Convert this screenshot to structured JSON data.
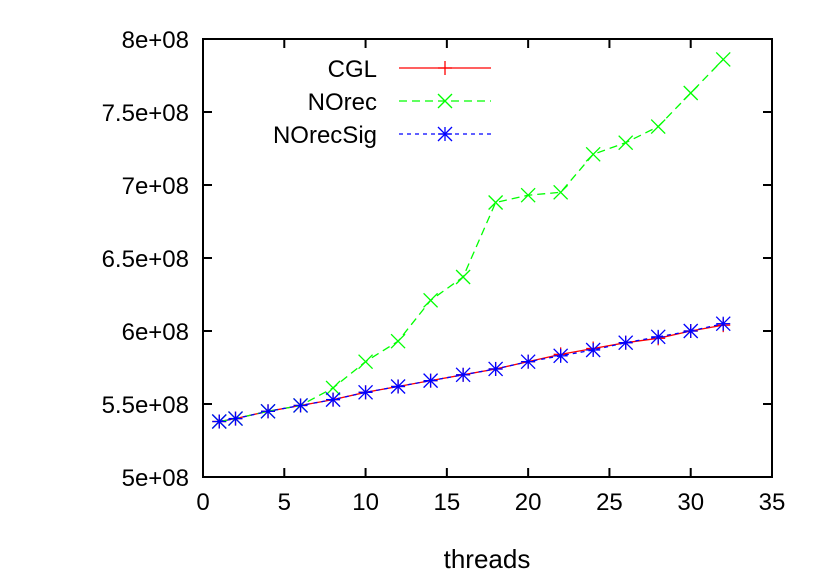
{
  "chart_data": {
    "type": "line",
    "title": "",
    "xlabel": "threads",
    "ylabel": "",
    "xlim": [
      0,
      35
    ],
    "ylim": [
      500000000,
      800000000
    ],
    "x_ticks": [
      0,
      5,
      10,
      15,
      20,
      25,
      30,
      35
    ],
    "x_tick_labels": [
      "0",
      "5",
      "10",
      "15",
      "20",
      "25",
      "30",
      "35"
    ],
    "y_ticks": [
      500000000,
      550000000,
      600000000,
      650000000,
      700000000,
      750000000,
      800000000
    ],
    "y_tick_labels": [
      "5e+08",
      "5.5e+08",
      "6e+08",
      "6.5e+08",
      "7e+08",
      "7.5e+08",
      "8e+08"
    ],
    "grid": false,
    "legend_position": "top-left",
    "x": [
      1,
      2,
      4,
      6,
      8,
      10,
      12,
      14,
      16,
      18,
      20,
      22,
      24,
      26,
      28,
      30,
      32
    ],
    "series": [
      {
        "name": "CGL",
        "color": "#ff0000",
        "marker": "plus",
        "dash": "solid",
        "values": [
          538000000,
          540000000,
          545000000,
          549000000,
          553000000,
          558000000,
          562000000,
          566000000,
          570000000,
          574000000,
          579000000,
          584000000,
          588000000,
          592000000,
          595000000,
          600000000,
          604000000
        ]
      },
      {
        "name": "NOrec",
        "color": "#00ff00",
        "marker": "x",
        "dash": "dashed",
        "values": [
          538000000,
          540000000,
          545000000,
          549000000,
          561000000,
          579000000,
          593000000,
          621000000,
          637000000,
          688000000,
          693000000,
          695000000,
          721000000,
          729000000,
          740000000,
          763000000,
          786000000
        ]
      },
      {
        "name": "NOrecSig",
        "color": "#0000ff",
        "marker": "star",
        "dash": "dotted",
        "values": [
          538000000,
          540000000,
          545000000,
          549000000,
          553000000,
          558000000,
          562000000,
          566000000,
          570000000,
          574000000,
          579000000,
          583000000,
          587000000,
          592000000,
          596000000,
          600000000,
          605000000
        ]
      }
    ]
  }
}
